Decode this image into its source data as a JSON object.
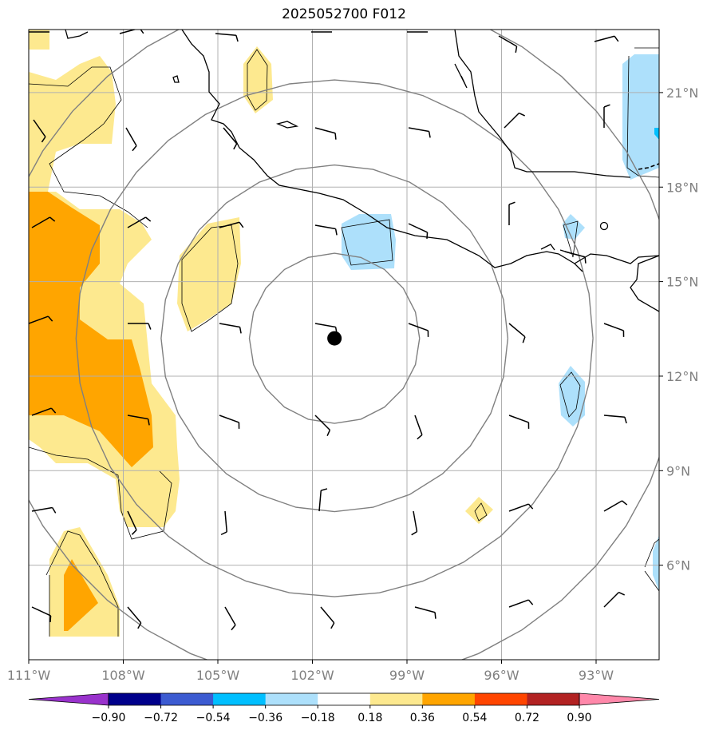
{
  "title": "2025052700 F012",
  "map": {
    "lon_range": [
      -111,
      -91
    ],
    "lat_range": [
      3,
      23
    ],
    "lon_ticks": [
      {
        "value": -111,
        "label": "111°W"
      },
      {
        "value": -108,
        "label": "108°W"
      },
      {
        "value": -105,
        "label": "105°W"
      },
      {
        "value": -102,
        "label": "102°W"
      },
      {
        "value": -99,
        "label": "99°W"
      },
      {
        "value": -96,
        "label": "96°W"
      },
      {
        "value": -93,
        "label": "93°W"
      }
    ],
    "lat_ticks": [
      {
        "value": 6,
        "label": "6°N"
      },
      {
        "value": 9,
        "label": "9°N"
      },
      {
        "value": 12,
        "label": "12°N"
      },
      {
        "value": 15,
        "label": "15°N"
      },
      {
        "value": 18,
        "label": "18°N"
      },
      {
        "value": 21,
        "label": "21°N"
      }
    ],
    "storm_center": {
      "lon": -101.3,
      "lat": 13.2
    },
    "range_ring_radii_deg": [
      2.7,
      5.5,
      8.2,
      11
    ],
    "colors": {
      "grid": "#b0b0b0",
      "ring": "#808080",
      "coast": "#000000",
      "pale_yellow": "#fde98f",
      "orange": "#ffa500",
      "light_blue": "#ade0fb",
      "cyan": "#00bfff"
    }
  },
  "colorbar": {
    "colors": [
      "#9932cc",
      "#00008b",
      "#3c5bd1",
      "#00bfff",
      "#ade0fb",
      "#ffffff",
      "#fde98f",
      "#ffa500",
      "#ff4500",
      "#b22222",
      "#ff88aa"
    ],
    "labels": [
      "−0.90",
      "−0.72",
      "−0.54",
      "−0.36",
      "−0.18",
      "0.18",
      "0.36",
      "0.54",
      "0.72",
      "0.90"
    ]
  }
}
